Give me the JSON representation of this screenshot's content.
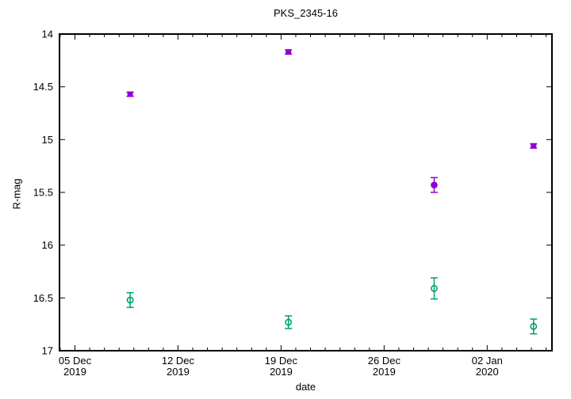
{
  "chart_data": {
    "type": "scatter",
    "title": "PKS_2345-16",
    "xlabel": "date",
    "ylabel": "R-mag",
    "grid": false,
    "legend": "none",
    "x_axis": {
      "epoch_of_day0": "2019-12-04",
      "min_day": -0.05,
      "max_day": 33.4,
      "minor_tick_step_days": 1,
      "major_ticks": [
        {
          "day": 1,
          "label": [
            "05 Dec",
            "2019"
          ]
        },
        {
          "day": 8,
          "label": [
            "12 Dec",
            "2019"
          ]
        },
        {
          "day": 15,
          "label": [
            "19 Dec",
            "2019"
          ]
        },
        {
          "day": 22,
          "label": [
            "26 Dec",
            "2019"
          ]
        },
        {
          "day": 29,
          "label": [
            "02 Jan",
            "2020"
          ]
        }
      ]
    },
    "y_axis": {
      "min": 14,
      "max": 17,
      "inverted": true,
      "ticks": [
        {
          "value": 14,
          "label": "14"
        },
        {
          "value": 14.5,
          "label": "14.5"
        },
        {
          "value": 15,
          "label": "15"
        },
        {
          "value": 15.5,
          "label": "15.5"
        },
        {
          "value": 16,
          "label": "16"
        },
        {
          "value": 16.5,
          "label": "16.5"
        },
        {
          "value": 17,
          "label": "17"
        }
      ]
    },
    "series": [
      {
        "id": "purple",
        "color": "#9400d3",
        "marker_default": "filled-square",
        "points": [
          {
            "date_approx": "2019-12-08.8",
            "day": 4.75,
            "mag": 14.57,
            "err": 0.02,
            "marker": "filled-square"
          },
          {
            "date_approx": "2019-12-19.5",
            "day": 15.5,
            "mag": 14.17,
            "err": 0.02,
            "marker": "filled-square"
          },
          {
            "date_approx": "2019-12-29.4",
            "day": 25.4,
            "mag": 15.43,
            "err": 0.07,
            "marker": "filled-circle"
          },
          {
            "date_approx": "2020-01-05.2",
            "day": 32.15,
            "mag": 15.06,
            "err": 0.02,
            "marker": "filled-square"
          }
        ]
      },
      {
        "id": "green",
        "color": "#009e73",
        "marker_default": "open-circle",
        "points": [
          {
            "date_approx": "2019-12-08.8",
            "day": 4.75,
            "mag": 16.52,
            "err": 0.07,
            "marker": "open-circle"
          },
          {
            "date_approx": "2019-12-19.5",
            "day": 15.5,
            "mag": 16.73,
            "err": 0.06,
            "marker": "open-circle"
          },
          {
            "date_approx": "2019-12-29.4",
            "day": 25.4,
            "mag": 16.41,
            "err": 0.1,
            "marker": "open-circle"
          },
          {
            "date_approx": "2020-01-05.2",
            "day": 32.15,
            "mag": 16.77,
            "err": 0.07,
            "marker": "open-circle"
          }
        ]
      }
    ],
    "colors": {
      "border": "#000000",
      "text": "#000000",
      "background": "#ffffff"
    }
  }
}
